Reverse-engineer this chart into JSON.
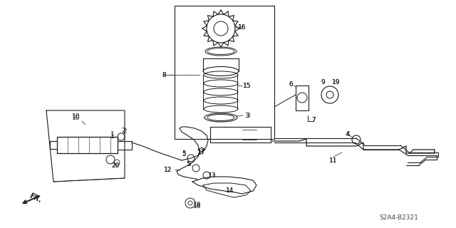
{
  "bg_color": "#ffffff",
  "line_color": "#1a1a1a",
  "fig_width": 6.4,
  "fig_height": 3.2,
  "dpi": 100,
  "diagram_code_label": "S2A4-B2321"
}
